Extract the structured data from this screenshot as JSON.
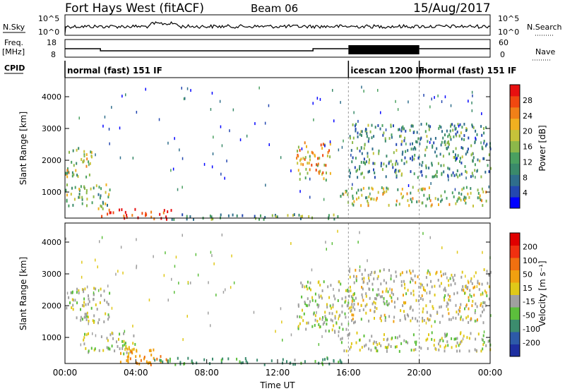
{
  "header": {
    "station": "Fort Hays West (fitACF)",
    "beam": "Beam 06",
    "date": "15/Aug/2017"
  },
  "left_labels": {
    "nsky": "N.Sky",
    "freq_line1": "Freq.",
    "freq_line2": "[MHz]",
    "cpid": "CPID"
  },
  "right_labels": {
    "nsearch": "N.Search",
    "nave": "Nave"
  },
  "nsky_ticks": [
    "10^5",
    "10^0"
  ],
  "nsearch_ticks": [
    "10^5",
    "10^0"
  ],
  "freq_ticks": [
    "18",
    "8"
  ],
  "nave_ticks": [
    "60",
    "0"
  ],
  "cpid_segments": [
    {
      "label": "normal (fast) 151 IF",
      "start_hour": 0,
      "end_hour": 16
    },
    {
      "label": "icescan 1200 IF",
      "start_hour": 16,
      "end_hour": 20
    },
    {
      "label": "normal (fast) 151 IF",
      "start_hour": 20,
      "end_hour": 24
    }
  ],
  "time_ticks": [
    "00:00",
    "04:00",
    "08:00",
    "12:00",
    "16:00",
    "20:00",
    "00:00"
  ],
  "x_axis_title": "Time UT",
  "range_axis_title": "Slant Range [km]",
  "power_colorbar": {
    "title": "Power [dB]",
    "ticks": [
      "28",
      "24",
      "20",
      "16",
      "12",
      "8",
      "4"
    ],
    "colors": [
      "#0000ff",
      "#2448b0",
      "#2f6e8c",
      "#3a8a6a",
      "#4aa060",
      "#8cb84a",
      "#c6c23a",
      "#f0b020",
      "#f08018",
      "#f04810",
      "#e81010"
    ]
  },
  "velocity_colorbar": {
    "title": "Velocity [m s⁻¹]",
    "ticks": [
      "200",
      "100",
      "50",
      "15",
      "-15",
      "-50",
      "-100",
      "-200"
    ],
    "colors": [
      "#1e2fa0",
      "#2d5aa8",
      "#3c8c6e",
      "#5cbf3c",
      "#a0a0a0",
      "#e0c818",
      "#f0a010",
      "#f07010",
      "#f03010",
      "#e00000"
    ]
  },
  "chart_data": [
    {
      "type": "heatmap",
      "name": "Power",
      "xlabel": "Time UT",
      "ylabel": "Slant Range [km]",
      "xlim_hours": [
        0,
        24
      ],
      "ylim_km": [
        180,
        4600
      ],
      "yticks": [
        1000,
        2000,
        3000,
        4000
      ],
      "colorbar_label": "Power [dB]",
      "colorbar_range": [
        0,
        30
      ],
      "echo_regions": [
        {
          "hours": [
            0,
            1.5
          ],
          "range_km": [
            1500,
            2500
          ],
          "power_db": 16
        },
        {
          "hours": [
            0,
            2.5
          ],
          "range_km": [
            500,
            1300
          ],
          "power_db": 14
        },
        {
          "hours": [
            2,
            6
          ],
          "range_km": [
            180,
            500
          ],
          "power_db": 26
        },
        {
          "hours": [
            6,
            16
          ],
          "range_km": [
            180,
            350
          ],
          "power_db": 12
        },
        {
          "hours": [
            13,
            15
          ],
          "range_km": [
            1400,
            2600
          ],
          "power_db": 20
        },
        {
          "hours": [
            15.5,
            24
          ],
          "range_km": [
            600,
            1200
          ],
          "power_db": 16
        },
        {
          "hours": [
            16,
            24
          ],
          "range_km": [
            1500,
            3200
          ],
          "power_db": 10
        }
      ]
    },
    {
      "type": "heatmap",
      "name": "Velocity",
      "xlabel": "Time UT",
      "ylabel": "Slant Range [km]",
      "xlim_hours": [
        0,
        24
      ],
      "ylim_km": [
        180,
        4600
      ],
      "yticks": [
        1000,
        2000,
        3000,
        4000
      ],
      "colorbar_label": "Velocity [m s⁻¹]",
      "colorbar_range": [
        -250,
        250
      ],
      "echo_regions": [
        {
          "hours": [
            0,
            2.5
          ],
          "range_km": [
            1500,
            2600
          ],
          "velocity": 0
        },
        {
          "hours": [
            1,
            4
          ],
          "range_km": [
            500,
            1200
          ],
          "velocity": 0
        },
        {
          "hours": [
            3,
            6
          ],
          "range_km": [
            180,
            700
          ],
          "velocity": -60
        },
        {
          "hours": [
            5,
            16
          ],
          "range_km": [
            180,
            400
          ],
          "velocity": 40
        },
        {
          "hours": [
            13,
            16
          ],
          "range_km": [
            1200,
            2800
          ],
          "velocity": 0
        },
        {
          "hours": [
            15.5,
            24
          ],
          "range_km": [
            600,
            1200
          ],
          "velocity": 0
        },
        {
          "hours": [
            16,
            24
          ],
          "range_km": [
            1500,
            3200
          ],
          "velocity": -10
        }
      ]
    }
  ]
}
